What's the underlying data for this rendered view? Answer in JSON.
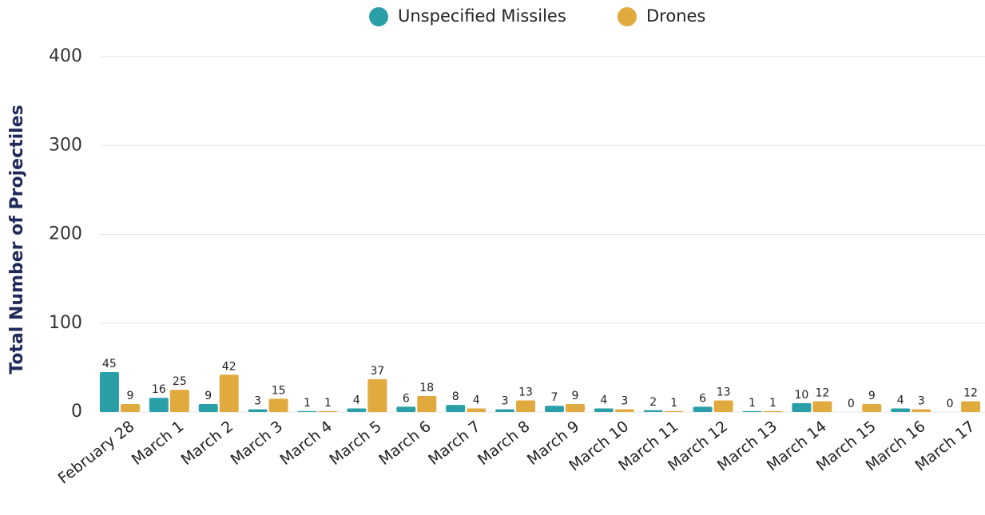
{
  "chart_data": {
    "type": "bar",
    "y_label": "Total Number of Projectiles",
    "categories": [
      "February 28",
      "March 1",
      "March 2",
      "March 3",
      "March 4",
      "March 5",
      "March 6",
      "March 7",
      "March 8",
      "March 9",
      "March 10",
      "March 11",
      "March 12",
      "March 13",
      "March 14",
      "March 15",
      "March 16",
      "March 17"
    ],
    "series": [
      {
        "name": "Unspecified Missiles",
        "color": "#2a9fa8",
        "values": [
          45,
          16,
          9,
          3,
          1,
          4,
          6,
          8,
          3,
          7,
          4,
          2,
          6,
          1,
          10,
          0,
          4,
          0
        ]
      },
      {
        "name": "Drones",
        "color": "#e0aa3e",
        "values": [
          9,
          25,
          42,
          15,
          1,
          37,
          18,
          4,
          13,
          9,
          3,
          1,
          13,
          1,
          12,
          9,
          3,
          12
        ]
      }
    ],
    "ylim": [
      0,
      400
    ],
    "yticks": [
      0,
      100,
      200,
      300,
      400
    ],
    "grid": true,
    "legend": "top"
  }
}
